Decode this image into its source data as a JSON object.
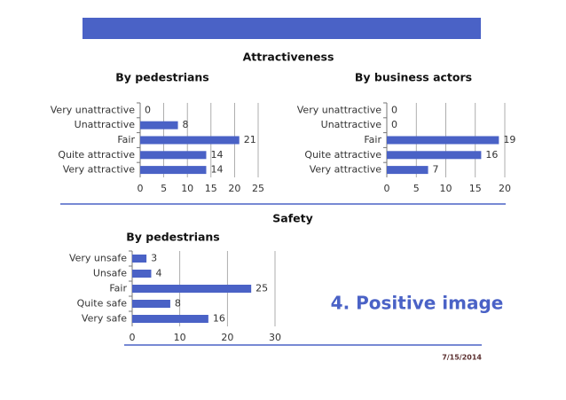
{
  "slide": {
    "headings": [
      "Attractiveness",
      "Safety"
    ],
    "title": "4. Positive image",
    "date": "7/15/2014"
  },
  "chart_data": [
    {
      "type": "hbar",
      "title": "By pedestrians",
      "categories": [
        "Very unattractive",
        "Unattractive",
        "Fair",
        "Quite attractive",
        "Very attractive"
      ],
      "values": [
        0,
        8,
        21,
        14,
        14
      ],
      "color": "#4a62c6",
      "xlim": [
        0,
        25
      ],
      "xticks": [
        0,
        5,
        10,
        15,
        20,
        25
      ],
      "grid": true
    },
    {
      "type": "hbar",
      "title": "By business actors",
      "categories": [
        "Very unattractive",
        "Unattractive",
        "Fair",
        "Quite attractive",
        "Very attractive"
      ],
      "values": [
        0,
        0,
        19,
        16,
        7
      ],
      "color": "#4a62c6",
      "xlim": [
        0,
        20
      ],
      "xticks": [
        0,
        5,
        10,
        15,
        20
      ],
      "grid": true
    },
    {
      "type": "hbar",
      "title": "By pedestrians",
      "categories": [
        "Very unsafe",
        "Unsafe",
        "Fair",
        "Quite safe",
        "Very safe"
      ],
      "values": [
        3,
        4,
        25,
        8,
        16
      ],
      "color": "#4a62c6",
      "xlim": [
        0,
        30
      ],
      "xticks": [
        0,
        10,
        20,
        30
      ],
      "grid": true
    }
  ]
}
